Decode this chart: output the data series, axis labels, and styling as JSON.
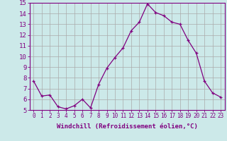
{
  "x": [
    0,
    1,
    2,
    3,
    4,
    5,
    6,
    7,
    8,
    9,
    10,
    11,
    12,
    13,
    14,
    15,
    16,
    17,
    18,
    19,
    20,
    21,
    22,
    23
  ],
  "y": [
    7.7,
    6.3,
    6.4,
    5.3,
    5.1,
    5.4,
    6.0,
    5.2,
    7.4,
    8.9,
    9.9,
    10.8,
    12.4,
    13.2,
    14.9,
    14.1,
    13.8,
    13.2,
    13.0,
    11.5,
    10.3,
    7.7,
    6.6,
    6.2
  ],
  "line_color": "#800080",
  "marker": "+",
  "marker_size": 3,
  "linewidth": 0.9,
  "xlabel": "Windchill (Refroidissement éolien,°C)",
  "xlabel_fontsize": 6.5,
  "xtick_labels": [
    "0",
    "1",
    "2",
    "3",
    "4",
    "5",
    "6",
    "7",
    "8",
    "9",
    "10",
    "11",
    "12",
    "13",
    "14",
    "15",
    "16",
    "17",
    "18",
    "19",
    "20",
    "21",
    "22",
    "23"
  ],
  "ylim": [
    5,
    15
  ],
  "yticks": [
    5,
    6,
    7,
    8,
    9,
    10,
    11,
    12,
    13,
    14,
    15
  ],
  "ytick_fontsize": 6.5,
  "xtick_fontsize": 5.5,
  "background_color": "#cce9e9",
  "grid_color": "#aaaaaa",
  "spine_color": "#800080",
  "xlabel_color": "#800080",
  "tick_color": "#800080"
}
